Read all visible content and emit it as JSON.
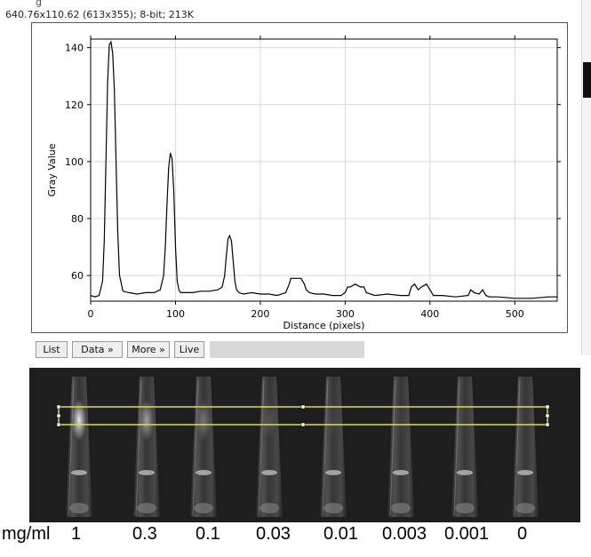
{
  "header": {
    "title_fragment": "g",
    "info_line": "640.76x110.62  (613x355); 8-bit; 213K"
  },
  "plot": {
    "xlabel": "Distance (pixels)",
    "ylabel": "Gray Value",
    "line_color": "#000000",
    "frame_color": "#555555"
  },
  "chart_data": {
    "type": "line",
    "title": "",
    "xlabel": "Distance (pixels)",
    "ylabel": "Gray Value",
    "xlim": [
      0,
      550
    ],
    "ylim": [
      51,
      143
    ],
    "xticks": [
      0,
      100,
      200,
      300,
      400,
      500
    ],
    "yticks": [
      60,
      80,
      100,
      120,
      140
    ],
    "grid": true,
    "series": [
      {
        "x": [
          0,
          5,
          10,
          14,
          16,
          18,
          20,
          22,
          24,
          26,
          28,
          30,
          32,
          34,
          38,
          45,
          55,
          65,
          75,
          82,
          86,
          88,
          90,
          92,
          94,
          96,
          98,
          100,
          102,
          104,
          106,
          110,
          120,
          130,
          140,
          150,
          155,
          158,
          160,
          162,
          164,
          166,
          168,
          170,
          172,
          175,
          180,
          190,
          200,
          210,
          220,
          230,
          234,
          236,
          240,
          248,
          252,
          254,
          258,
          265,
          275,
          285,
          295,
          300,
          303,
          306,
          312,
          318,
          322,
          325,
          335,
          350,
          365,
          375,
          378,
          382,
          386,
          390,
          396,
          400,
          404,
          415,
          430,
          445,
          448,
          452,
          458,
          462,
          466,
          470,
          480,
          500,
          520,
          540,
          550
        ],
        "y": [
          53,
          52.5,
          53,
          58,
          72,
          100,
          128,
          141,
          142,
          138,
          125,
          100,
          75,
          60,
          54.5,
          54,
          53.5,
          54,
          54,
          55,
          60,
          70,
          85,
          98,
          103,
          101,
          90,
          70,
          58,
          55,
          54,
          54,
          54,
          54.5,
          54.5,
          55,
          56,
          60,
          67,
          73,
          74,
          72,
          65,
          58,
          55,
          54,
          53.5,
          54,
          53.5,
          53.5,
          53,
          54,
          57,
          59,
          59,
          59,
          57,
          55,
          54,
          53.5,
          53.5,
          53,
          53,
          54,
          56,
          56,
          57,
          56,
          56,
          54,
          53,
          53.5,
          53,
          53,
          56,
          57,
          55,
          56,
          57,
          55,
          53,
          53,
          52.5,
          53,
          55,
          54,
          53.5,
          55,
          53,
          52.5,
          52.5,
          52,
          52,
          52.5,
          52.5
        ]
      }
    ]
  },
  "buttons": {
    "list": "List",
    "data": "Data »",
    "more": "More »",
    "live": "Live"
  },
  "gel": {
    "background": "#1e1e1e",
    "selection_color": "#e0e040"
  },
  "concentrations": {
    "unit": "mg/ml",
    "values": [
      "1",
      "0.3",
      "0.1",
      "0.03",
      "0.01",
      "0.003",
      "0.001",
      "0"
    ]
  }
}
